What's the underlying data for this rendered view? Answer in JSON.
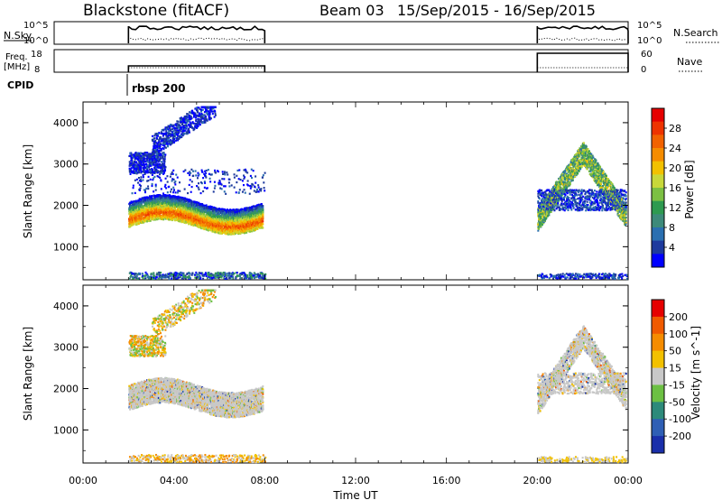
{
  "header": {
    "station": "Blackstone (fitACF)",
    "beam": "Beam 03",
    "date_range": "15/Sep/2015 - 16/Sep/2015"
  },
  "top_panels": {
    "nsky": {
      "left_label": "N.Sky",
      "ticks": [
        "10^5",
        "10^0"
      ],
      "right_label": "N.Search",
      "right_ticks": [
        "10^5",
        "10^0"
      ]
    },
    "freq": {
      "left_label_1": "Freq.",
      "left_label_2": "[MHz]",
      "ticks": [
        "18",
        "8"
      ],
      "right_label": "Nave",
      "right_ticks": [
        "60",
        "0"
      ]
    },
    "cpid": {
      "left_label": "CPID",
      "mode_label": "rbsp 200"
    }
  },
  "chart_data": [
    {
      "type": "heatmap",
      "name": "power",
      "ylabel": "Slant Range [km]",
      "yticks": [
        1000,
        2000,
        3000,
        4000
      ],
      "ylim": [
        200,
        4500
      ],
      "xlabel": "Time UT",
      "xticks": [
        "00:00",
        "04:00",
        "08:00",
        "12:00",
        "16:00",
        "20:00",
        "00:00"
      ],
      "xlim_hours": [
        0,
        24
      ],
      "colorbar": {
        "label": "Power [dB]",
        "ticks": [
          "4",
          "8",
          "12",
          "16",
          "20",
          "24",
          "28"
        ],
        "colors": [
          "#0000ff",
          "#1e3a9e",
          "#2a6fb0",
          "#3d8a7a",
          "#2e9a50",
          "#7cc043",
          "#c8d83a",
          "#f2c100",
          "#f58c00",
          "#f26200",
          "#ee3300",
          "#e50000"
        ]
      },
      "data_windows_hours": [
        [
          2.0,
          8.0
        ],
        [
          20.0,
          24.0
        ]
      ],
      "features": [
        {
          "desc_time": [
            2.0,
            8.0
          ],
          "range_km": [
            1500,
            2100
          ],
          "level": "high",
          "shape": "wave"
        },
        {
          "desc_time": [
            2.0,
            3.2
          ],
          "range_km": [
            2800,
            3200
          ],
          "level": "low"
        },
        {
          "desc_time": [
            3.2,
            5.5
          ],
          "range_km": [
            3300,
            4400
          ],
          "level": "low"
        },
        {
          "desc_time": [
            20.0,
            24.0
          ],
          "range_km": [
            1800,
            3500
          ],
          "level": "mid",
          "shape": "peak_at_22"
        }
      ]
    },
    {
      "type": "heatmap",
      "name": "velocity",
      "ylabel": "Slant Range [km]",
      "yticks": [
        1000,
        2000,
        3000,
        4000
      ],
      "ylim": [
        200,
        4500
      ],
      "xlabel": "Time UT",
      "xticks": [
        "00:00",
        "04:00",
        "08:00",
        "12:00",
        "16:00",
        "20:00",
        "00:00"
      ],
      "xlim_hours": [
        0,
        24
      ],
      "colorbar": {
        "label": "Velocity [m s^-1]",
        "ticks": [
          "200",
          "100",
          "50",
          "15",
          "-15",
          "-50",
          "-100",
          "-200"
        ],
        "colors": [
          "#1a2faa",
          "#2f5fb5",
          "#2d8a7a",
          "#6cc043",
          "#c8c8c8",
          "#f2c100",
          "#f58c00",
          "#f05a00",
          "#e50000"
        ]
      },
      "data_windows_hours": [
        [
          2.0,
          8.0
        ],
        [
          20.0,
          24.0
        ]
      ]
    }
  ],
  "axes": {
    "xlabel": "Time UT"
  }
}
